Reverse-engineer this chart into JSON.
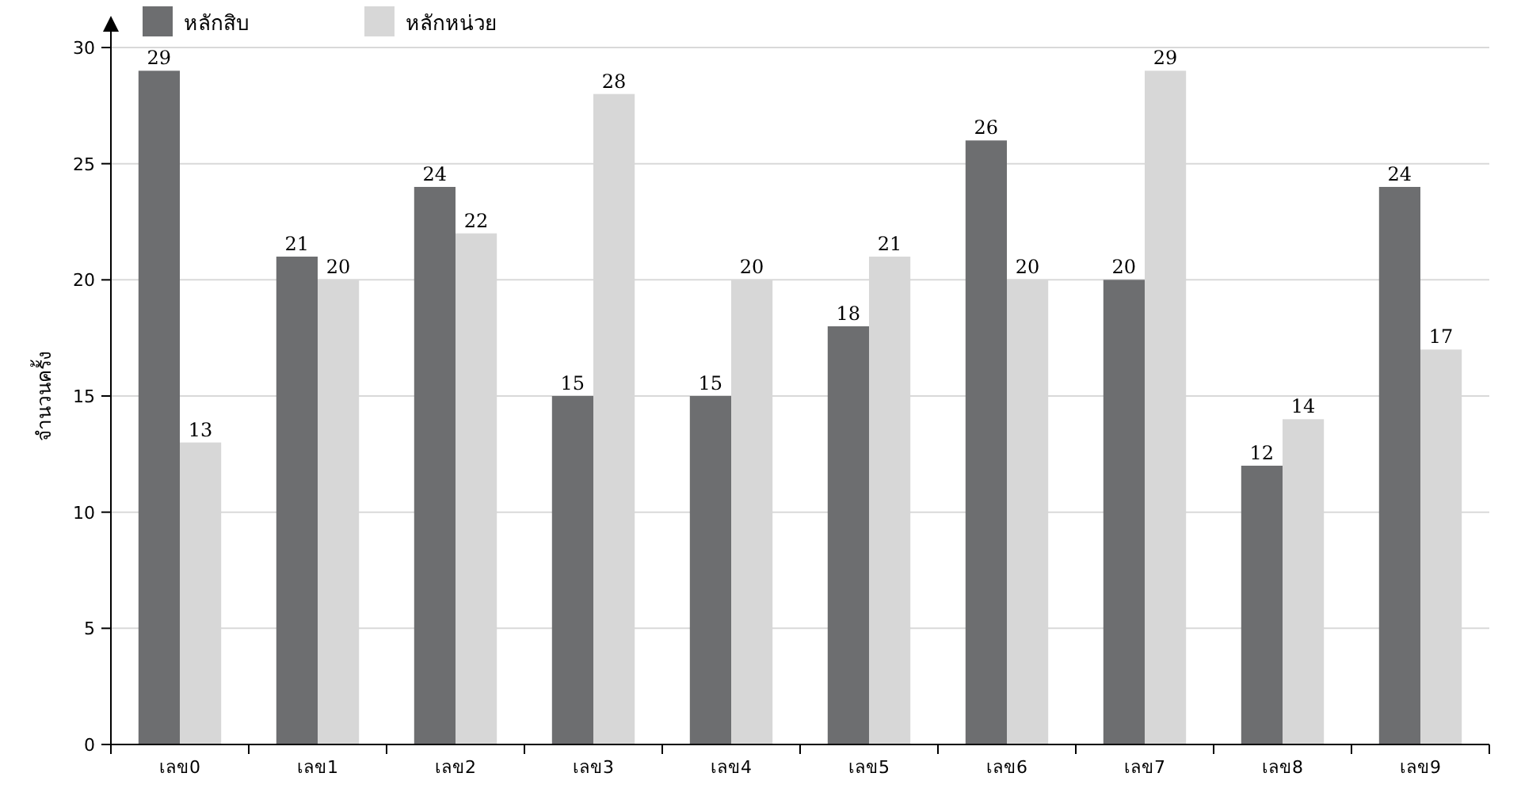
{
  "chart_data": {
    "type": "bar",
    "ylabel": "จำนวนครั้ง",
    "categories": [
      "เลข0",
      "เลข1",
      "เลข2",
      "เลข3",
      "เลข4",
      "เลข5",
      "เลข6",
      "เลข7",
      "เลข8",
      "เลข9"
    ],
    "series": [
      {
        "name": "หลักสิบ",
        "color": "#6d6e70",
        "values": [
          29,
          21,
          24,
          15,
          15,
          18,
          26,
          20,
          12,
          24
        ]
      },
      {
        "name": "หลักหน่วย",
        "color": "#d7d7d7",
        "values": [
          13,
          20,
          22,
          28,
          20,
          21,
          20,
          29,
          14,
          17
        ]
      }
    ],
    "ylim": [
      0,
      30
    ],
    "yticks": [
      0,
      5,
      10,
      15,
      20,
      25,
      30
    ],
    "grid": "y",
    "legend": "top left",
    "data_labels": true
  }
}
